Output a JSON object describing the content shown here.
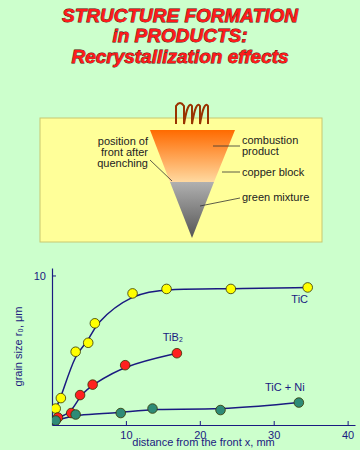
{
  "title": [
    "STRUCTURE FORMATION",
    "in PRODUCTS:",
    "Recrystallization effects"
  ],
  "diagram": {
    "combustion_product": [
      "combustion",
      "product"
    ],
    "front": [
      "position of",
      "front after",
      "quenching"
    ],
    "copper_block": [
      "copper block"
    ],
    "green_mixture": [
      "green mixture"
    ]
  },
  "chart_data": {
    "type": "scatter",
    "x_label": "distance from the front x, mm",
    "y_label": "grain size r₀, μm",
    "xlim": [
      0,
      41
    ],
    "ylim": [
      0,
      10.5
    ],
    "xticks": [
      10,
      20,
      30,
      40
    ],
    "yticks": [
      10
    ],
    "series": [
      {
        "name": "TiC",
        "color": "#ffff00",
        "marker": "circle",
        "line_style": "smooth",
        "x": [
          0.5,
          1.2,
          3.2,
          4.9,
          5.8,
          10.9,
          15.5,
          24.2,
          34.6
        ],
        "values": [
          1.1,
          1.8,
          4.9,
          5.5,
          6.8,
          8.8,
          9.1,
          9.1,
          9.2
        ]
      },
      {
        "name": "TiB₂",
        "color": "#ff2020",
        "marker": "circle",
        "line_style": "smooth",
        "x": [
          0.8,
          2.6,
          3.8,
          5.5,
          9.9,
          16.9
        ],
        "values": [
          0.5,
          0.8,
          2.0,
          2.7,
          4.0,
          4.8
        ]
      },
      {
        "name": "TiC + Ni",
        "color": "#2e8b77",
        "marker": "circle",
        "line_style": "smooth",
        "x": [
          0.5,
          3.2,
          9.3,
          13.6,
          22.8,
          33.4
        ],
        "values": [
          0.3,
          0.7,
          0.8,
          1.1,
          1.0,
          1.5
        ]
      }
    ]
  }
}
